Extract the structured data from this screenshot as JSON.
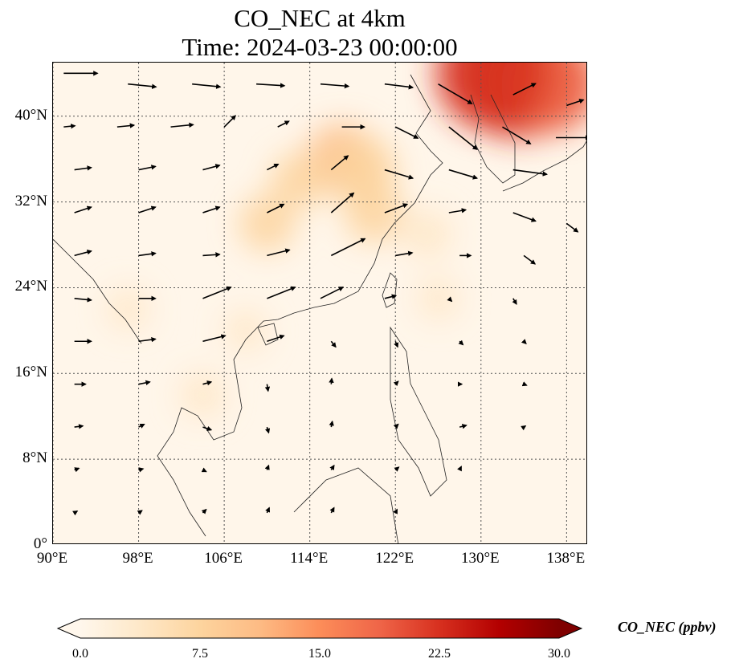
{
  "title": {
    "line1": "CO_NEC at 4km",
    "line2": "Time: 2024-03-23 00:00:00"
  },
  "map": {
    "lon_range": [
      90,
      140
    ],
    "lat_range": [
      0,
      45
    ],
    "x_ticks": [
      {
        "value": 90,
        "label": "90°E"
      },
      {
        "value": 98,
        "label": "98°E"
      },
      {
        "value": 106,
        "label": "106°E"
      },
      {
        "value": 114,
        "label": "114°E"
      },
      {
        "value": 122,
        "label": "122°E"
      },
      {
        "value": 130,
        "label": "130°E"
      },
      {
        "value": 138,
        "label": "138°E"
      }
    ],
    "y_ticks": [
      {
        "value": 40,
        "label": "40°N"
      },
      {
        "value": 32,
        "label": "32°N"
      },
      {
        "value": 24,
        "label": "24°N"
      },
      {
        "value": 16,
        "label": "16°N"
      },
      {
        "value": 8,
        "label": "8°N"
      },
      {
        "value": 0,
        "label": "0°"
      }
    ],
    "gridlines": true,
    "field_name": "CO_NEC",
    "plumes": [
      {
        "lon": 133.5,
        "lat": 43.5,
        "value": 24
      },
      {
        "lon": 136.5,
        "lat": 43.0,
        "value": 18
      },
      {
        "lon": 131.0,
        "lat": 44.0,
        "value": 22
      },
      {
        "lon": 117.0,
        "lat": 36.0,
        "value": 10
      },
      {
        "lon": 119.0,
        "lat": 35.0,
        "value": 9
      },
      {
        "lon": 113.0,
        "lat": 34.0,
        "value": 6
      },
      {
        "lon": 110.0,
        "lat": 30.0,
        "value": 6
      },
      {
        "lon": 120.0,
        "lat": 31.0,
        "value": 7
      },
      {
        "lon": 125.0,
        "lat": 29.0,
        "value": 4
      },
      {
        "lon": 104.0,
        "lat": 14.0,
        "value": 3
      },
      {
        "lon": 108.0,
        "lat": 20.0,
        "value": 2
      },
      {
        "lon": 126.0,
        "lat": 23.0,
        "value": 2
      },
      {
        "lon": 97.0,
        "lat": 22.0,
        "value": 2
      }
    ],
    "wind_vectors": [
      {
        "lon": 91,
        "lat": 44,
        "u": 6,
        "v": 0.0
      },
      {
        "lon": 97,
        "lat": 43,
        "u": 5,
        "v": -0.5
      },
      {
        "lon": 103,
        "lat": 43,
        "u": 5,
        "v": -0.5
      },
      {
        "lon": 109,
        "lat": 43,
        "u": 5,
        "v": -0.3
      },
      {
        "lon": 115,
        "lat": 43,
        "u": 5,
        "v": -0.4
      },
      {
        "lon": 121,
        "lat": 43,
        "u": 5,
        "v": -0.6
      },
      {
        "lon": 126,
        "lat": 43,
        "u": 6,
        "v": -3.5
      },
      {
        "lon": 133,
        "lat": 42,
        "u": 4,
        "v": 2.0
      },
      {
        "lon": 138,
        "lat": 41,
        "u": 3,
        "v": 1.0
      },
      {
        "lon": 91,
        "lat": 39,
        "u": 2,
        "v": 0.2
      },
      {
        "lon": 96,
        "lat": 39,
        "u": 3,
        "v": 0.3
      },
      {
        "lon": 101,
        "lat": 39,
        "u": 4,
        "v": 0.4
      },
      {
        "lon": 106,
        "lat": 39,
        "u": 2,
        "v": 2.0
      },
      {
        "lon": 111,
        "lat": 39,
        "u": 2,
        "v": 1.0
      },
      {
        "lon": 117,
        "lat": 39,
        "u": 4,
        "v": 0.0
      },
      {
        "lon": 122,
        "lat": 39,
        "u": 4,
        "v": -2.0
      },
      {
        "lon": 127,
        "lat": 39,
        "u": 5,
        "v": -4.0
      },
      {
        "lon": 132,
        "lat": 39,
        "u": 5,
        "v": -3.0
      },
      {
        "lon": 137,
        "lat": 38,
        "u": 6,
        "v": 0.0
      },
      {
        "lon": 92,
        "lat": 35,
        "u": 3,
        "v": 0.4
      },
      {
        "lon": 98,
        "lat": 35,
        "u": 3,
        "v": 0.6
      },
      {
        "lon": 104,
        "lat": 35,
        "u": 3,
        "v": 0.8
      },
      {
        "lon": 110,
        "lat": 35,
        "u": 2,
        "v": 1.0
      },
      {
        "lon": 116,
        "lat": 35,
        "u": 3,
        "v": 2.5
      },
      {
        "lon": 121,
        "lat": 35,
        "u": 5,
        "v": -1.5
      },
      {
        "lon": 127,
        "lat": 35,
        "u": 5,
        "v": -1.5
      },
      {
        "lon": 133,
        "lat": 35,
        "u": 6,
        "v": -0.8
      },
      {
        "lon": 92,
        "lat": 31,
        "u": 3,
        "v": 1.0
      },
      {
        "lon": 98,
        "lat": 31,
        "u": 3,
        "v": 1.0
      },
      {
        "lon": 104,
        "lat": 31,
        "u": 3,
        "v": 1.0
      },
      {
        "lon": 110,
        "lat": 31,
        "u": 3,
        "v": 1.5
      },
      {
        "lon": 116,
        "lat": 31,
        "u": 4,
        "v": 3.5
      },
      {
        "lon": 121,
        "lat": 31,
        "u": 4,
        "v": 1.5
      },
      {
        "lon": 127,
        "lat": 31,
        "u": 3,
        "v": 0.5
      },
      {
        "lon": 133,
        "lat": 31,
        "u": 4,
        "v": -1.5
      },
      {
        "lon": 138,
        "lat": 30,
        "u": 2,
        "v": -1.5
      },
      {
        "lon": 92,
        "lat": 27,
        "u": 3,
        "v": 0.8
      },
      {
        "lon": 98,
        "lat": 27,
        "u": 3,
        "v": 0.4
      },
      {
        "lon": 104,
        "lat": 27,
        "u": 3,
        "v": 0.2
      },
      {
        "lon": 110,
        "lat": 27,
        "u": 4,
        "v": 1.0
      },
      {
        "lon": 116,
        "lat": 27,
        "u": 6,
        "v": 3.0
      },
      {
        "lon": 122,
        "lat": 27,
        "u": 3,
        "v": 0.5
      },
      {
        "lon": 128,
        "lat": 27,
        "u": 2,
        "v": 0.0
      },
      {
        "lon": 134,
        "lat": 27,
        "u": 2,
        "v": -1.5
      },
      {
        "lon": 92,
        "lat": 23,
        "u": 3,
        "v": -0.3
      },
      {
        "lon": 98,
        "lat": 23,
        "u": 3,
        "v": 0.0
      },
      {
        "lon": 104,
        "lat": 23,
        "u": 5,
        "v": 2.0
      },
      {
        "lon": 110,
        "lat": 23,
        "u": 5,
        "v": 2.0
      },
      {
        "lon": 115,
        "lat": 23,
        "u": 4,
        "v": 2.0
      },
      {
        "lon": 121,
        "lat": 23,
        "u": 2,
        "v": 0.5
      },
      {
        "lon": 127,
        "lat": 23,
        "u": 0.5,
        "v": -0.5
      },
      {
        "lon": 133,
        "lat": 23,
        "u": 0.6,
        "v": -1.0
      },
      {
        "lon": 92,
        "lat": 19,
        "u": 3,
        "v": 0.0
      },
      {
        "lon": 98,
        "lat": 19,
        "u": 3,
        "v": 0.4
      },
      {
        "lon": 104,
        "lat": 19,
        "u": 4,
        "v": 1.0
      },
      {
        "lon": 110,
        "lat": 19,
        "u": 3,
        "v": 1.0
      },
      {
        "lon": 116,
        "lat": 19,
        "u": 0.8,
        "v": -1.0
      },
      {
        "lon": 122,
        "lat": 19,
        "u": 0.4,
        "v": -1.0
      },
      {
        "lon": 128,
        "lat": 19,
        "u": 0.6,
        "v": -0.6
      },
      {
        "lon": 134,
        "lat": 19,
        "u": 0.4,
        "v": -0.4
      },
      {
        "lon": 92,
        "lat": 15,
        "u": 2,
        "v": 0.0
      },
      {
        "lon": 98,
        "lat": 15,
        "u": 2,
        "v": 0.4
      },
      {
        "lon": 104,
        "lat": 15,
        "u": 1.5,
        "v": 0.4
      },
      {
        "lon": 110,
        "lat": 15,
        "u": 0.2,
        "v": -1.2
      },
      {
        "lon": 116,
        "lat": 15,
        "u": 0.1,
        "v": 1.0
      },
      {
        "lon": 122,
        "lat": 15,
        "u": 0.5,
        "v": 0.5
      },
      {
        "lon": 128,
        "lat": 15,
        "u": 0.4,
        "v": 0.0
      },
      {
        "lon": 134,
        "lat": 15,
        "u": 0.5,
        "v": -0.2
      },
      {
        "lon": 92,
        "lat": 11,
        "u": 1.5,
        "v": 0.2
      },
      {
        "lon": 98,
        "lat": 11,
        "u": 1.0,
        "v": 0.5
      },
      {
        "lon": 104,
        "lat": 11,
        "u": 1.5,
        "v": -0.5
      },
      {
        "lon": 110,
        "lat": 11,
        "u": 0.3,
        "v": -1.0
      },
      {
        "lon": 116,
        "lat": 11,
        "u": 0.2,
        "v": 1.0
      },
      {
        "lon": 122,
        "lat": 11,
        "u": 0.5,
        "v": 0.5
      },
      {
        "lon": 128,
        "lat": 11,
        "u": 1.2,
        "v": 0.3
      },
      {
        "lon": 134,
        "lat": 11,
        "u": 0.3,
        "v": 0.2
      },
      {
        "lon": 92,
        "lat": 7,
        "u": 0.8,
        "v": 0.3
      },
      {
        "lon": 98,
        "lat": 7,
        "u": 0.8,
        "v": 0.2
      },
      {
        "lon": 104,
        "lat": 7,
        "u": 0.6,
        "v": -0.3
      },
      {
        "lon": 110,
        "lat": 7,
        "u": 0.3,
        "v": 0.8
      },
      {
        "lon": 116,
        "lat": 7,
        "u": 0.5,
        "v": 0.8
      },
      {
        "lon": 122,
        "lat": 7,
        "u": 0.6,
        "v": 0.5
      },
      {
        "lon": 128,
        "lat": 7,
        "u": 0.3,
        "v": 0.6
      },
      {
        "lon": 92,
        "lat": 3,
        "u": 0.5,
        "v": 0.3
      },
      {
        "lon": 98,
        "lat": 3,
        "u": 0.6,
        "v": 0.4
      },
      {
        "lon": 104,
        "lat": 3,
        "u": 0.6,
        "v": 0.6
      },
      {
        "lon": 110,
        "lat": 3,
        "u": 0.4,
        "v": 0.9
      },
      {
        "lon": 116,
        "lat": 3,
        "u": 0.5,
        "v": 0.9
      },
      {
        "lon": 122,
        "lat": 3,
        "u": 0.3,
        "v": 0.6
      }
    ]
  },
  "colorbar": {
    "label": "CO_NEC (ppbv)",
    "min": 0.0,
    "max": 30.0,
    "colormap": "OrRd",
    "colors": [
      "#fff7ec",
      "#fee8c8",
      "#fdd49e",
      "#fdbb84",
      "#fc8d59",
      "#ef6548",
      "#d7301f",
      "#b30000",
      "#7f0000"
    ],
    "ticks": [
      "0.0",
      "7.5",
      "15.0",
      "22.5",
      "30.0"
    ],
    "extend": "both"
  }
}
